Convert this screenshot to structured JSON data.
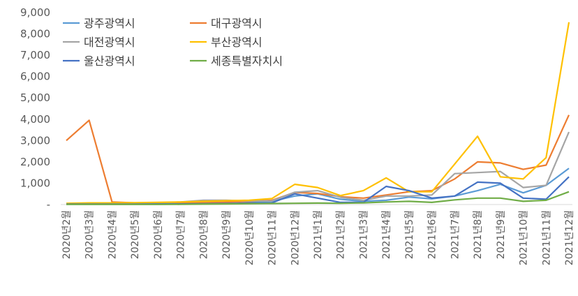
{
  "chart_data": {
    "type": "line",
    "categories": [
      "2020년2월",
      "2020년3월",
      "2020년4월",
      "2020년5월",
      "2020년6월",
      "2020년7월",
      "2020년8월",
      "2020년9월",
      "2020년10월",
      "2020년11월",
      "2020년12월",
      "2021년1월",
      "2021년2월",
      "2021년3월",
      "2021년4월",
      "2021년5월",
      "2021년6월",
      "2021년7월",
      "2021년8월",
      "2021년9월",
      "2021년10월",
      "2021년11월",
      "2021년12월"
    ],
    "y_tick_labels": [
      "-",
      "1,000",
      "2,000",
      "3,000",
      "4,000",
      "5,000",
      "6,000",
      "7,000",
      "8,000",
      "9,000"
    ],
    "ylim": [
      0,
      9000
    ],
    "legend_position": "top-left",
    "grid": false,
    "series": [
      {
        "name": "광주광역시",
        "color": "#5B9BD5",
        "values": [
          20,
          30,
          40,
          50,
          60,
          110,
          160,
          180,
          130,
          150,
          400,
          500,
          250,
          150,
          200,
          350,
          270,
          400,
          650,
          950,
          550,
          900,
          1700
        ]
      },
      {
        "name": "대구광역시",
        "color": "#ED7D31",
        "values": [
          3000,
          3950,
          120,
          80,
          60,
          70,
          90,
          110,
          150,
          200,
          570,
          520,
          370,
          300,
          450,
          600,
          650,
          1200,
          2000,
          1950,
          1650,
          1850,
          4200
        ]
      },
      {
        "name": "대전광역시",
        "color": "#A5A5A5",
        "values": [
          30,
          40,
          50,
          60,
          80,
          120,
          200,
          200,
          170,
          170,
          580,
          650,
          340,
          200,
          400,
          400,
          450,
          1450,
          1500,
          1550,
          800,
          900,
          3400
        ]
      },
      {
        "name": "부산광역시",
        "color": "#FFC000",
        "values": [
          60,
          80,
          80,
          90,
          100,
          120,
          150,
          180,
          200,
          280,
          950,
          800,
          420,
          650,
          1250,
          600,
          600,
          1900,
          3200,
          1300,
          1200,
          2200,
          8550
        ]
      },
      {
        "name": "울산광역시",
        "color": "#4472C4",
        "values": [
          20,
          20,
          20,
          20,
          30,
          30,
          40,
          50,
          70,
          80,
          500,
          300,
          100,
          100,
          850,
          650,
          300,
          400,
          1050,
          1000,
          300,
          250,
          1300
        ]
      },
      {
        "name": "세종특별자치시",
        "color": "#70AD47",
        "values": [
          5,
          5,
          5,
          5,
          5,
          10,
          20,
          30,
          40,
          50,
          60,
          70,
          60,
          80,
          120,
          150,
          100,
          220,
          300,
          300,
          150,
          200,
          600
        ]
      }
    ]
  }
}
